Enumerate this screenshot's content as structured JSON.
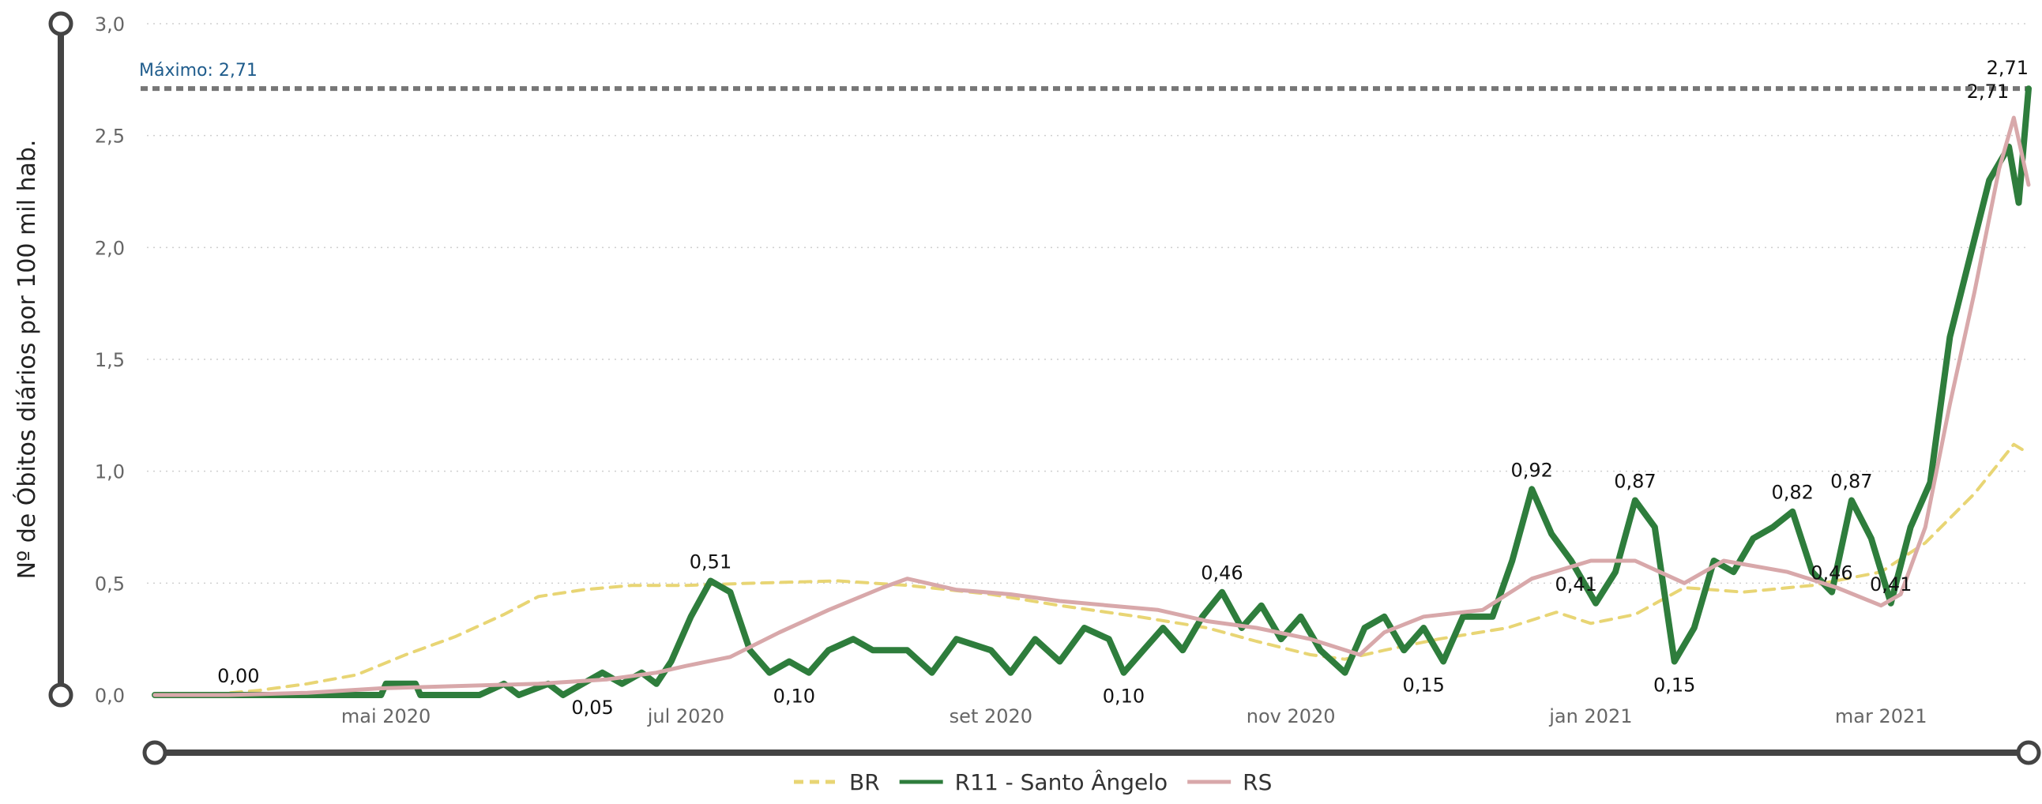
{
  "chart_data": {
    "type": "line",
    "title": "",
    "xlabel": "",
    "ylabel": "Nº de Óbitos diários por 100 mil hab.",
    "ylim": [
      0,
      3.0
    ],
    "yticks": [
      "0,0",
      "0,5",
      "1,0",
      "1,5",
      "2,0",
      "2,5",
      "3,0"
    ],
    "x_range": [
      "2020-03-15",
      "2021-03-31"
    ],
    "xticks": [
      {
        "date": "2020-05-01",
        "label": "mai 2020"
      },
      {
        "date": "2020-07-01",
        "label": "jul 2020"
      },
      {
        "date": "2020-09-01",
        "label": "set 2020"
      },
      {
        "date": "2020-11-01",
        "label": "nov 2020"
      },
      {
        "date": "2021-01-01",
        "label": "jan 2021"
      },
      {
        "date": "2021-03-01",
        "label": "mar 2021"
      }
    ],
    "grid": "horizontal dotted",
    "legend_position": "bottom-center",
    "reference_line": {
      "value": 2.71,
      "label": "Máximo: 2,71",
      "color": "#777777"
    },
    "series": [
      {
        "name": "BR",
        "color": "#e8d574",
        "dash": true,
        "points": [
          [
            "2020-03-15",
            0.0
          ],
          [
            "2020-03-25",
            0.0
          ],
          [
            "2020-04-05",
            0.02
          ],
          [
            "2020-04-15",
            0.05
          ],
          [
            "2020-04-25",
            0.09
          ],
          [
            "2020-05-05",
            0.18
          ],
          [
            "2020-05-15",
            0.26
          ],
          [
            "2020-05-25",
            0.36
          ],
          [
            "2020-06-01",
            0.44
          ],
          [
            "2020-06-10",
            0.47
          ],
          [
            "2020-06-20",
            0.49
          ],
          [
            "2020-07-01",
            0.49
          ],
          [
            "2020-07-15",
            0.5
          ],
          [
            "2020-08-01",
            0.51
          ],
          [
            "2020-08-15",
            0.49
          ],
          [
            "2020-09-01",
            0.45
          ],
          [
            "2020-09-15",
            0.4
          ],
          [
            "2020-10-01",
            0.35
          ],
          [
            "2020-10-15",
            0.3
          ],
          [
            "2020-10-25",
            0.24
          ],
          [
            "2020-11-05",
            0.18
          ],
          [
            "2020-11-12",
            0.16
          ],
          [
            "2020-11-20",
            0.2
          ],
          [
            "2020-12-01",
            0.25
          ],
          [
            "2020-12-15",
            0.3
          ],
          [
            "2020-12-25",
            0.37
          ],
          [
            "2021-01-01",
            0.32
          ],
          [
            "2021-01-10",
            0.36
          ],
          [
            "2021-01-20",
            0.48
          ],
          [
            "2021-02-01",
            0.46
          ],
          [
            "2021-02-15",
            0.49
          ],
          [
            "2021-03-01",
            0.55
          ],
          [
            "2021-03-10",
            0.68
          ],
          [
            "2021-03-20",
            0.9
          ],
          [
            "2021-03-28",
            1.12
          ],
          [
            "2021-03-31",
            1.08
          ]
        ]
      },
      {
        "name": "R11 - Santo Ângelo",
        "color": "#2e7d3c",
        "dash": false,
        "points": [
          [
            "2020-03-15",
            0.0
          ],
          [
            "2020-03-30",
            0.0
          ],
          [
            "2020-04-15",
            0.0
          ],
          [
            "2020-04-30",
            0.0
          ],
          [
            "2020-05-01",
            0.05
          ],
          [
            "2020-05-07",
            0.05
          ],
          [
            "2020-05-08",
            0.0
          ],
          [
            "2020-05-20",
            0.0
          ],
          [
            "2020-05-25",
            0.05
          ],
          [
            "2020-05-28",
            0.0
          ],
          [
            "2020-06-03",
            0.05
          ],
          [
            "2020-06-06",
            0.0
          ],
          [
            "2020-06-10",
            0.05
          ],
          [
            "2020-06-14",
            0.1
          ],
          [
            "2020-06-18",
            0.05
          ],
          [
            "2020-06-22",
            0.1
          ],
          [
            "2020-06-25",
            0.05
          ],
          [
            "2020-06-28",
            0.15
          ],
          [
            "2020-07-02",
            0.35
          ],
          [
            "2020-07-06",
            0.51
          ],
          [
            "2020-07-10",
            0.46
          ],
          [
            "2020-07-14",
            0.2
          ],
          [
            "2020-07-18",
            0.1
          ],
          [
            "2020-07-22",
            0.15
          ],
          [
            "2020-07-26",
            0.1
          ],
          [
            "2020-07-30",
            0.2
          ],
          [
            "2020-08-04",
            0.25
          ],
          [
            "2020-08-08",
            0.2
          ],
          [
            "2020-08-15",
            0.2
          ],
          [
            "2020-08-20",
            0.1
          ],
          [
            "2020-08-25",
            0.25
          ],
          [
            "2020-09-01",
            0.2
          ],
          [
            "2020-09-05",
            0.1
          ],
          [
            "2020-09-10",
            0.25
          ],
          [
            "2020-09-15",
            0.15
          ],
          [
            "2020-09-20",
            0.3
          ],
          [
            "2020-09-25",
            0.25
          ],
          [
            "2020-09-28",
            0.1
          ],
          [
            "2020-10-02",
            0.2
          ],
          [
            "2020-10-06",
            0.3
          ],
          [
            "2020-10-10",
            0.2
          ],
          [
            "2020-10-14",
            0.35
          ],
          [
            "2020-10-18",
            0.46
          ],
          [
            "2020-10-22",
            0.3
          ],
          [
            "2020-10-26",
            0.4
          ],
          [
            "2020-10-30",
            0.25
          ],
          [
            "2020-11-03",
            0.35
          ],
          [
            "2020-11-07",
            0.2
          ],
          [
            "2020-11-12",
            0.1
          ],
          [
            "2020-11-16",
            0.3
          ],
          [
            "2020-11-20",
            0.35
          ],
          [
            "2020-11-24",
            0.2
          ],
          [
            "2020-11-28",
            0.3
          ],
          [
            "2020-12-02",
            0.15
          ],
          [
            "2020-12-06",
            0.35
          ],
          [
            "2020-12-12",
            0.35
          ],
          [
            "2020-12-16",
            0.6
          ],
          [
            "2020-12-20",
            0.92
          ],
          [
            "2020-12-24",
            0.72
          ],
          [
            "2020-12-28",
            0.6
          ],
          [
            "2021-01-02",
            0.41
          ],
          [
            "2021-01-06",
            0.55
          ],
          [
            "2021-01-10",
            0.87
          ],
          [
            "2021-01-14",
            0.75
          ],
          [
            "2021-01-18",
            0.15
          ],
          [
            "2021-01-22",
            0.3
          ],
          [
            "2021-01-26",
            0.6
          ],
          [
            "2021-01-30",
            0.55
          ],
          [
            "2021-02-03",
            0.7
          ],
          [
            "2021-02-07",
            0.75
          ],
          [
            "2021-02-11",
            0.82
          ],
          [
            "2021-02-15",
            0.55
          ],
          [
            "2021-02-19",
            0.46
          ],
          [
            "2021-02-23",
            0.87
          ],
          [
            "2021-02-27",
            0.7
          ],
          [
            "2021-03-03",
            0.41
          ],
          [
            "2021-03-07",
            0.75
          ],
          [
            "2021-03-11",
            0.95
          ],
          [
            "2021-03-15",
            1.6
          ],
          [
            "2021-03-19",
            1.95
          ],
          [
            "2021-03-23",
            2.3
          ],
          [
            "2021-03-27",
            2.45
          ],
          [
            "2021-03-29",
            2.2
          ],
          [
            "2021-03-31",
            2.71
          ]
        ]
      },
      {
        "name": "RS",
        "color": "#d8a8aa",
        "dash": false,
        "points": [
          [
            "2020-03-15",
            0.0
          ],
          [
            "2020-03-30",
            0.0
          ],
          [
            "2020-04-15",
            0.01
          ],
          [
            "2020-04-30",
            0.03
          ],
          [
            "2020-05-15",
            0.04
          ],
          [
            "2020-06-01",
            0.05
          ],
          [
            "2020-06-15",
            0.07
          ],
          [
            "2020-06-25",
            0.1
          ],
          [
            "2020-07-01",
            0.13
          ],
          [
            "2020-07-10",
            0.17
          ],
          [
            "2020-07-20",
            0.28
          ],
          [
            "2020-07-30",
            0.38
          ],
          [
            "2020-08-10",
            0.48
          ],
          [
            "2020-08-15",
            0.52
          ],
          [
            "2020-08-25",
            0.47
          ],
          [
            "2020-09-05",
            0.45
          ],
          [
            "2020-09-15",
            0.42
          ],
          [
            "2020-09-25",
            0.4
          ],
          [
            "2020-10-05",
            0.38
          ],
          [
            "2020-10-15",
            0.33
          ],
          [
            "2020-10-25",
            0.3
          ],
          [
            "2020-11-05",
            0.25
          ],
          [
            "2020-11-15",
            0.18
          ],
          [
            "2020-11-20",
            0.28
          ],
          [
            "2020-11-28",
            0.35
          ],
          [
            "2020-12-10",
            0.38
          ],
          [
            "2020-12-20",
            0.52
          ],
          [
            "2021-01-01",
            0.6
          ],
          [
            "2021-01-10",
            0.6
          ],
          [
            "2021-01-20",
            0.5
          ],
          [
            "2021-01-28",
            0.6
          ],
          [
            "2021-02-10",
            0.55
          ],
          [
            "2021-02-20",
            0.48
          ],
          [
            "2021-03-01",
            0.4
          ],
          [
            "2021-03-05",
            0.45
          ],
          [
            "2021-03-10",
            0.75
          ],
          [
            "2021-03-15",
            1.3
          ],
          [
            "2021-03-20",
            1.8
          ],
          [
            "2021-03-25",
            2.35
          ],
          [
            "2021-03-28",
            2.58
          ],
          [
            "2021-03-31",
            2.28
          ]
        ]
      }
    ],
    "data_labels": [
      {
        "date": "2020-04-01",
        "value": 0.0,
        "text": "0,00"
      },
      {
        "date": "2020-06-12",
        "value": 0.05,
        "text": "0,05"
      },
      {
        "date": "2020-07-06",
        "value": 0.51,
        "text": "0,51"
      },
      {
        "date": "2020-07-23",
        "value": 0.1,
        "text": "0,10"
      },
      {
        "date": "2020-09-28",
        "value": 0.1,
        "text": "0,10"
      },
      {
        "date": "2020-10-18",
        "value": 0.46,
        "text": "0,46"
      },
      {
        "date": "2020-11-28",
        "value": 0.15,
        "text": "0,15"
      },
      {
        "date": "2020-12-20",
        "value": 0.92,
        "text": "0,92"
      },
      {
        "date": "2020-12-29",
        "value": 0.41,
        "text": "0,41"
      },
      {
        "date": "2021-01-10",
        "value": 0.87,
        "text": "0,87"
      },
      {
        "date": "2021-01-18",
        "value": 0.15,
        "text": "0,15"
      },
      {
        "date": "2021-02-11",
        "value": 0.82,
        "text": "0,82"
      },
      {
        "date": "2021-02-19",
        "value": 0.46,
        "text": "0,46"
      },
      {
        "date": "2021-02-23",
        "value": 0.87,
        "text": "0,87"
      },
      {
        "date": "2021-03-03",
        "value": 0.41,
        "text": "0,41"
      },
      {
        "date": "2021-03-27",
        "value": 2.71,
        "text": "2,71"
      },
      {
        "date": "2021-03-31",
        "value": 2.71,
        "text": "2,71"
      }
    ]
  }
}
